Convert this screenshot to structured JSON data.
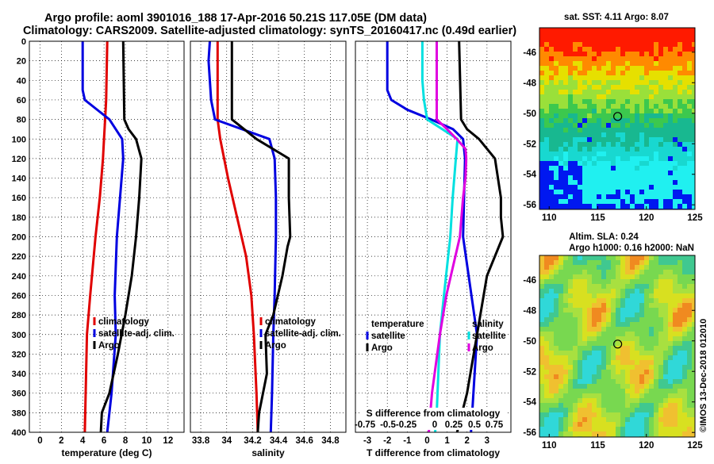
{
  "title": {
    "line1": "Argo profile: aoml 3901016_188 17-Apr-2016 50.21S 117.05E (DM data)",
    "line2": "Climatology: CARS2009. Satellite-adjusted climatology: synTS_20160417.nc (0.49d earlier)"
  },
  "depth_ticks": [
    "0",
    "20",
    "40",
    "60",
    "80",
    "100",
    "120",
    "140",
    "160",
    "180",
    "200",
    "220",
    "240",
    "260",
    "280",
    "300",
    "320",
    "340",
    "360",
    "380",
    "400"
  ],
  "chart_data": [
    {
      "type": "line",
      "name": "temperature",
      "xlabel": "temperature (deg C)",
      "ylabel": "depth",
      "xlim": [
        -1,
        13.5
      ],
      "ylim": [
        0,
        400
      ],
      "xticks": [
        0,
        2,
        4,
        6,
        8,
        10,
        12
      ],
      "xticklabels": [
        "0",
        "2",
        "4",
        "6",
        "8",
        "10",
        "12"
      ],
      "legend": [
        "climatology",
        "satellite-adj. clim.",
        "Argo"
      ],
      "colors": [
        "#e00000",
        "#0000e0",
        "#000000"
      ],
      "series": [
        {
          "name": "climatology",
          "depth": [
            0,
            60,
            80,
            100,
            120,
            160,
            200,
            260,
            300,
            400
          ],
          "values": [
            6.3,
            6.2,
            6.1,
            6.0,
            5.9,
            5.6,
            5.2,
            4.7,
            4.4,
            4.2
          ]
        },
        {
          "name": "satellite-adj. clim.",
          "depth": [
            0,
            50,
            60,
            80,
            100,
            120,
            160,
            200,
            260,
            300,
            360,
            400
          ],
          "values": [
            4.0,
            4.0,
            4.2,
            6.5,
            7.7,
            7.8,
            7.5,
            7.2,
            7.0,
            7.1,
            6.7,
            6.3
          ]
        },
        {
          "name": "Argo",
          "depth": [
            0,
            80,
            90,
            100,
            120,
            160,
            200,
            240,
            280,
            320,
            360,
            380,
            400
          ],
          "values": [
            7.8,
            7.9,
            8.3,
            9.0,
            9.5,
            9.3,
            9.0,
            8.6,
            8.0,
            7.3,
            6.5,
            5.8,
            5.7
          ]
        }
      ]
    },
    {
      "type": "line",
      "name": "salinity",
      "xlabel": "salinity",
      "ylabel": "depth",
      "xlim": [
        33.72,
        34.92
      ],
      "ylim": [
        0,
        400
      ],
      "xticks": [
        33.8,
        34.0,
        34.2,
        34.4,
        34.6,
        34.8
      ],
      "xticklabels": [
        "33.8",
        "34",
        "34.2",
        "34.4",
        "34.6",
        "34.8"
      ],
      "legend": [
        "climatology",
        "satellite-adj. clim.",
        "Argo"
      ],
      "colors": [
        "#e00000",
        "#0000e0",
        "#000000"
      ],
      "series": [
        {
          "name": "climatology",
          "depth": [
            0,
            80,
            100,
            140,
            180,
            220,
            260,
            300,
            360,
            400
          ],
          "values": [
            33.93,
            33.93,
            33.95,
            34.01,
            34.08,
            34.15,
            34.19,
            34.21,
            34.23,
            34.24
          ]
        },
        {
          "name": "satellite-adj. clim.",
          "depth": [
            0,
            20,
            40,
            60,
            80,
            100,
            120,
            160,
            200,
            260,
            300,
            360,
            400
          ],
          "values": [
            33.87,
            33.86,
            33.87,
            33.88,
            33.91,
            34.33,
            34.37,
            34.38,
            34.38,
            34.37,
            34.36,
            34.35,
            34.34
          ]
        },
        {
          "name": "Argo",
          "depth": [
            0,
            80,
            100,
            120,
            160,
            200,
            210,
            240,
            280,
            300,
            340,
            380,
            400
          ],
          "values": [
            34.04,
            34.04,
            34.23,
            34.48,
            34.48,
            34.49,
            34.47,
            34.43,
            34.36,
            34.3,
            34.31,
            34.25,
            34.24
          ]
        }
      ]
    },
    {
      "type": "line",
      "name": "difference from climatology",
      "xlabel": "T difference from climatology",
      "xlabel2": "S difference from climatology",
      "ylabel": "depth",
      "xlim": [
        -3.6,
        4.2
      ],
      "ylim": [
        0,
        400
      ],
      "xticks": [
        -3,
        -2,
        -1,
        0,
        1,
        2,
        3
      ],
      "xticklabels": [
        "-3",
        "-2",
        "-1",
        "0",
        "1",
        "2",
        "3"
      ],
      "s_axis_ticks": [
        "-0.75",
        "-0.5",
        "-0.25",
        "0",
        "0.25",
        "0.5",
        "0.75"
      ],
      "legend_temperature": [
        "temperature",
        "satellite",
        "Argo"
      ],
      "legend_salinity": [
        "salinity",
        "satellite",
        "Argo"
      ],
      "colors": [
        "#0000e0",
        "#000000",
        "#00e0e0",
        "#e000e0"
      ],
      "series": [
        {
          "name": "temperature satellite",
          "depth": [
            0,
            50,
            60,
            70,
            80,
            90,
            100,
            120,
            200,
            300,
            400
          ],
          "values": [
            -2.0,
            -2.0,
            -1.8,
            -1.0,
            0.2,
            1.3,
            1.8,
            1.9,
            1.8,
            2.5,
            2.2
          ]
        },
        {
          "name": "temperature Argo",
          "depth": [
            0,
            80,
            90,
            100,
            120,
            160,
            180,
            200,
            240,
            300,
            360,
            400
          ],
          "values": [
            1.6,
            1.7,
            2.0,
            2.6,
            3.4,
            3.7,
            3.7,
            3.8,
            3.0,
            2.5,
            2.0,
            1.5
          ]
        },
        {
          "name": "salinity satellite",
          "depth": [
            0,
            40,
            60,
            80,
            100,
            120,
            160,
            200,
            260,
            300,
            380,
            400
          ],
          "values": [
            -0.06,
            -0.06,
            -0.04,
            0.0,
            0.38,
            0.36,
            0.32,
            0.29,
            0.21,
            0.16,
            0.12,
            0.1
          ]
        },
        {
          "name": "salinity Argo",
          "depth": [
            0,
            80,
            90,
            100,
            110,
            120,
            140,
            160,
            200,
            260,
            300,
            360,
            400
          ],
          "values": [
            0.12,
            0.12,
            0.25,
            0.37,
            0.48,
            0.49,
            0.48,
            0.45,
            0.41,
            0.24,
            0.16,
            0.06,
            0.02
          ]
        }
      ]
    },
    {
      "type": "heatmap",
      "name": "sat SST map",
      "title": "sat. SST: 4.11 Argo: 8.07",
      "xlim": [
        109,
        125
      ],
      "ylim": [
        -56.3,
        -44.4
      ],
      "xticks": [
        110,
        115,
        120,
        125
      ],
      "xticklabels": [
        "110",
        "115",
        "120",
        "125"
      ],
      "yticks": [
        -46,
        -48,
        -50,
        -52,
        -54,
        -56
      ],
      "yticklabels": [
        "-46",
        "-48",
        "-50",
        "-52",
        "-54",
        "-56"
      ],
      "marker": {
        "lon": 117.05,
        "lat": -50.21
      }
    },
    {
      "type": "heatmap",
      "name": "altimetry SLA map",
      "title1": "Altim. SLA: 0.24",
      "title2": "Argo h1000: 0.16 h2000: NaN",
      "xlim": [
        109,
        125
      ],
      "ylim": [
        -56.3,
        -44.4
      ],
      "xticks": [
        110,
        115,
        120,
        125
      ],
      "xticklabels": [
        "110",
        "115",
        "120",
        "125"
      ],
      "yticks": [
        -46,
        -48,
        -50,
        -52,
        -54,
        -56
      ],
      "yticklabels": [
        "-46",
        "-48",
        "-50",
        "-52",
        "-54",
        "-56"
      ],
      "marker": {
        "lon": 117.05,
        "lat": -50.21
      }
    }
  ],
  "credit": "©IMOS 13-Dec-2018 012010"
}
